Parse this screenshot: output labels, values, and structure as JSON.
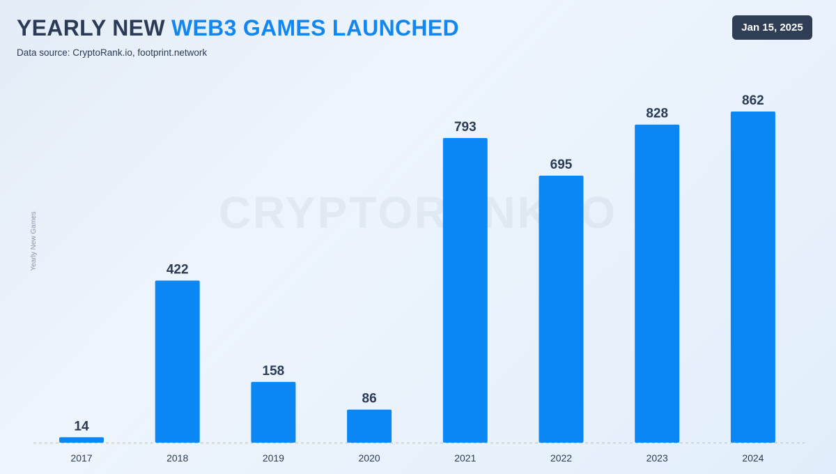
{
  "header": {
    "title_part1": "YEARLY NEW",
    "title_part2": "WEB3 GAMES LAUNCHED",
    "subtitle": "Data source: CryptoRank.io, footprint.network",
    "date_badge": "Jan 15, 2025"
  },
  "watermark": "CRYPTORANK.IO",
  "colors": {
    "bar": "#0a87f2",
    "title_dark": "#2b3a55",
    "title_accent": "#1387f0",
    "badge_bg": "#2f3d55"
  },
  "chart_data": {
    "type": "bar",
    "title": "YEARLY NEW WEB3 GAMES LAUNCHED",
    "xlabel": "",
    "ylabel": "Yearly New Games",
    "categories": [
      "2017",
      "2018",
      "2019",
      "2020",
      "2021",
      "2022",
      "2023",
      "2024"
    ],
    "values": [
      14,
      422,
      158,
      86,
      793,
      695,
      828,
      862
    ],
    "ylim": [
      0,
      862
    ],
    "grid": false,
    "legend": "none",
    "data_labels": true
  }
}
